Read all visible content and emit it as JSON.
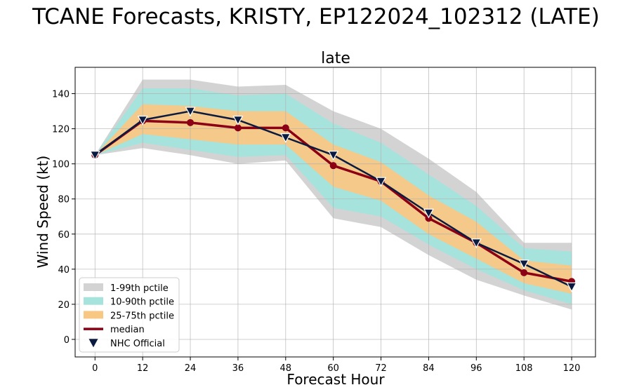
{
  "chart_data": {
    "type": "line",
    "suptitle": "TCANE Forecasts, KRISTY, EP122024_102312 (LATE)",
    "title": "late",
    "xlabel": "Forecast Hour",
    "ylabel": "Wind Speed (kt)",
    "x": [
      0,
      12,
      24,
      36,
      48,
      60,
      72,
      84,
      96,
      108,
      120
    ],
    "xlim": [
      -5,
      126
    ],
    "ylim": [
      -10,
      155
    ],
    "xticks": [
      0,
      12,
      24,
      36,
      48,
      60,
      72,
      84,
      96,
      108,
      120
    ],
    "yticks": [
      0,
      20,
      40,
      60,
      80,
      100,
      120,
      140
    ],
    "grid": true,
    "legend_position": "lower-left",
    "bands": [
      {
        "name": "1-99th pctile",
        "color": "#d3d3d3",
        "lower": [
          105,
          109,
          105,
          100,
          102,
          69,
          64,
          48,
          34,
          25,
          17
        ],
        "upper": [
          105,
          148,
          148,
          144,
          145,
          130,
          120,
          103,
          84,
          55,
          55
        ]
      },
      {
        "name": "10-90th pctile",
        "color": "#a6e3dc",
        "lower": [
          105,
          112,
          108,
          104,
          105,
          75,
          70,
          54,
          40,
          28,
          20
        ],
        "upper": [
          105,
          143,
          143,
          139,
          140,
          123,
          112,
          94,
          76,
          52,
          50
        ]
      },
      {
        "name": "25-75th pctile",
        "color": "#f9c784",
        "lower": [
          105,
          117,
          114,
          111,
          111,
          87,
          79,
          60,
          46,
          32,
          26
        ],
        "upper": [
          105,
          134,
          133,
          130,
          130,
          111,
          101,
          82,
          67,
          45,
          42
        ]
      }
    ],
    "series": [
      {
        "name": "median",
        "color": "#8b0015",
        "values": [
          105,
          124.5,
          123.5,
          120.5,
          120.5,
          99,
          90,
          69,
          55,
          38,
          33
        ]
      },
      {
        "name": "NHC Official",
        "color": "#0b1b3f",
        "values": [
          105,
          125,
          130,
          125,
          115,
          105,
          90,
          72,
          55,
          43,
          30
        ]
      }
    ]
  }
}
